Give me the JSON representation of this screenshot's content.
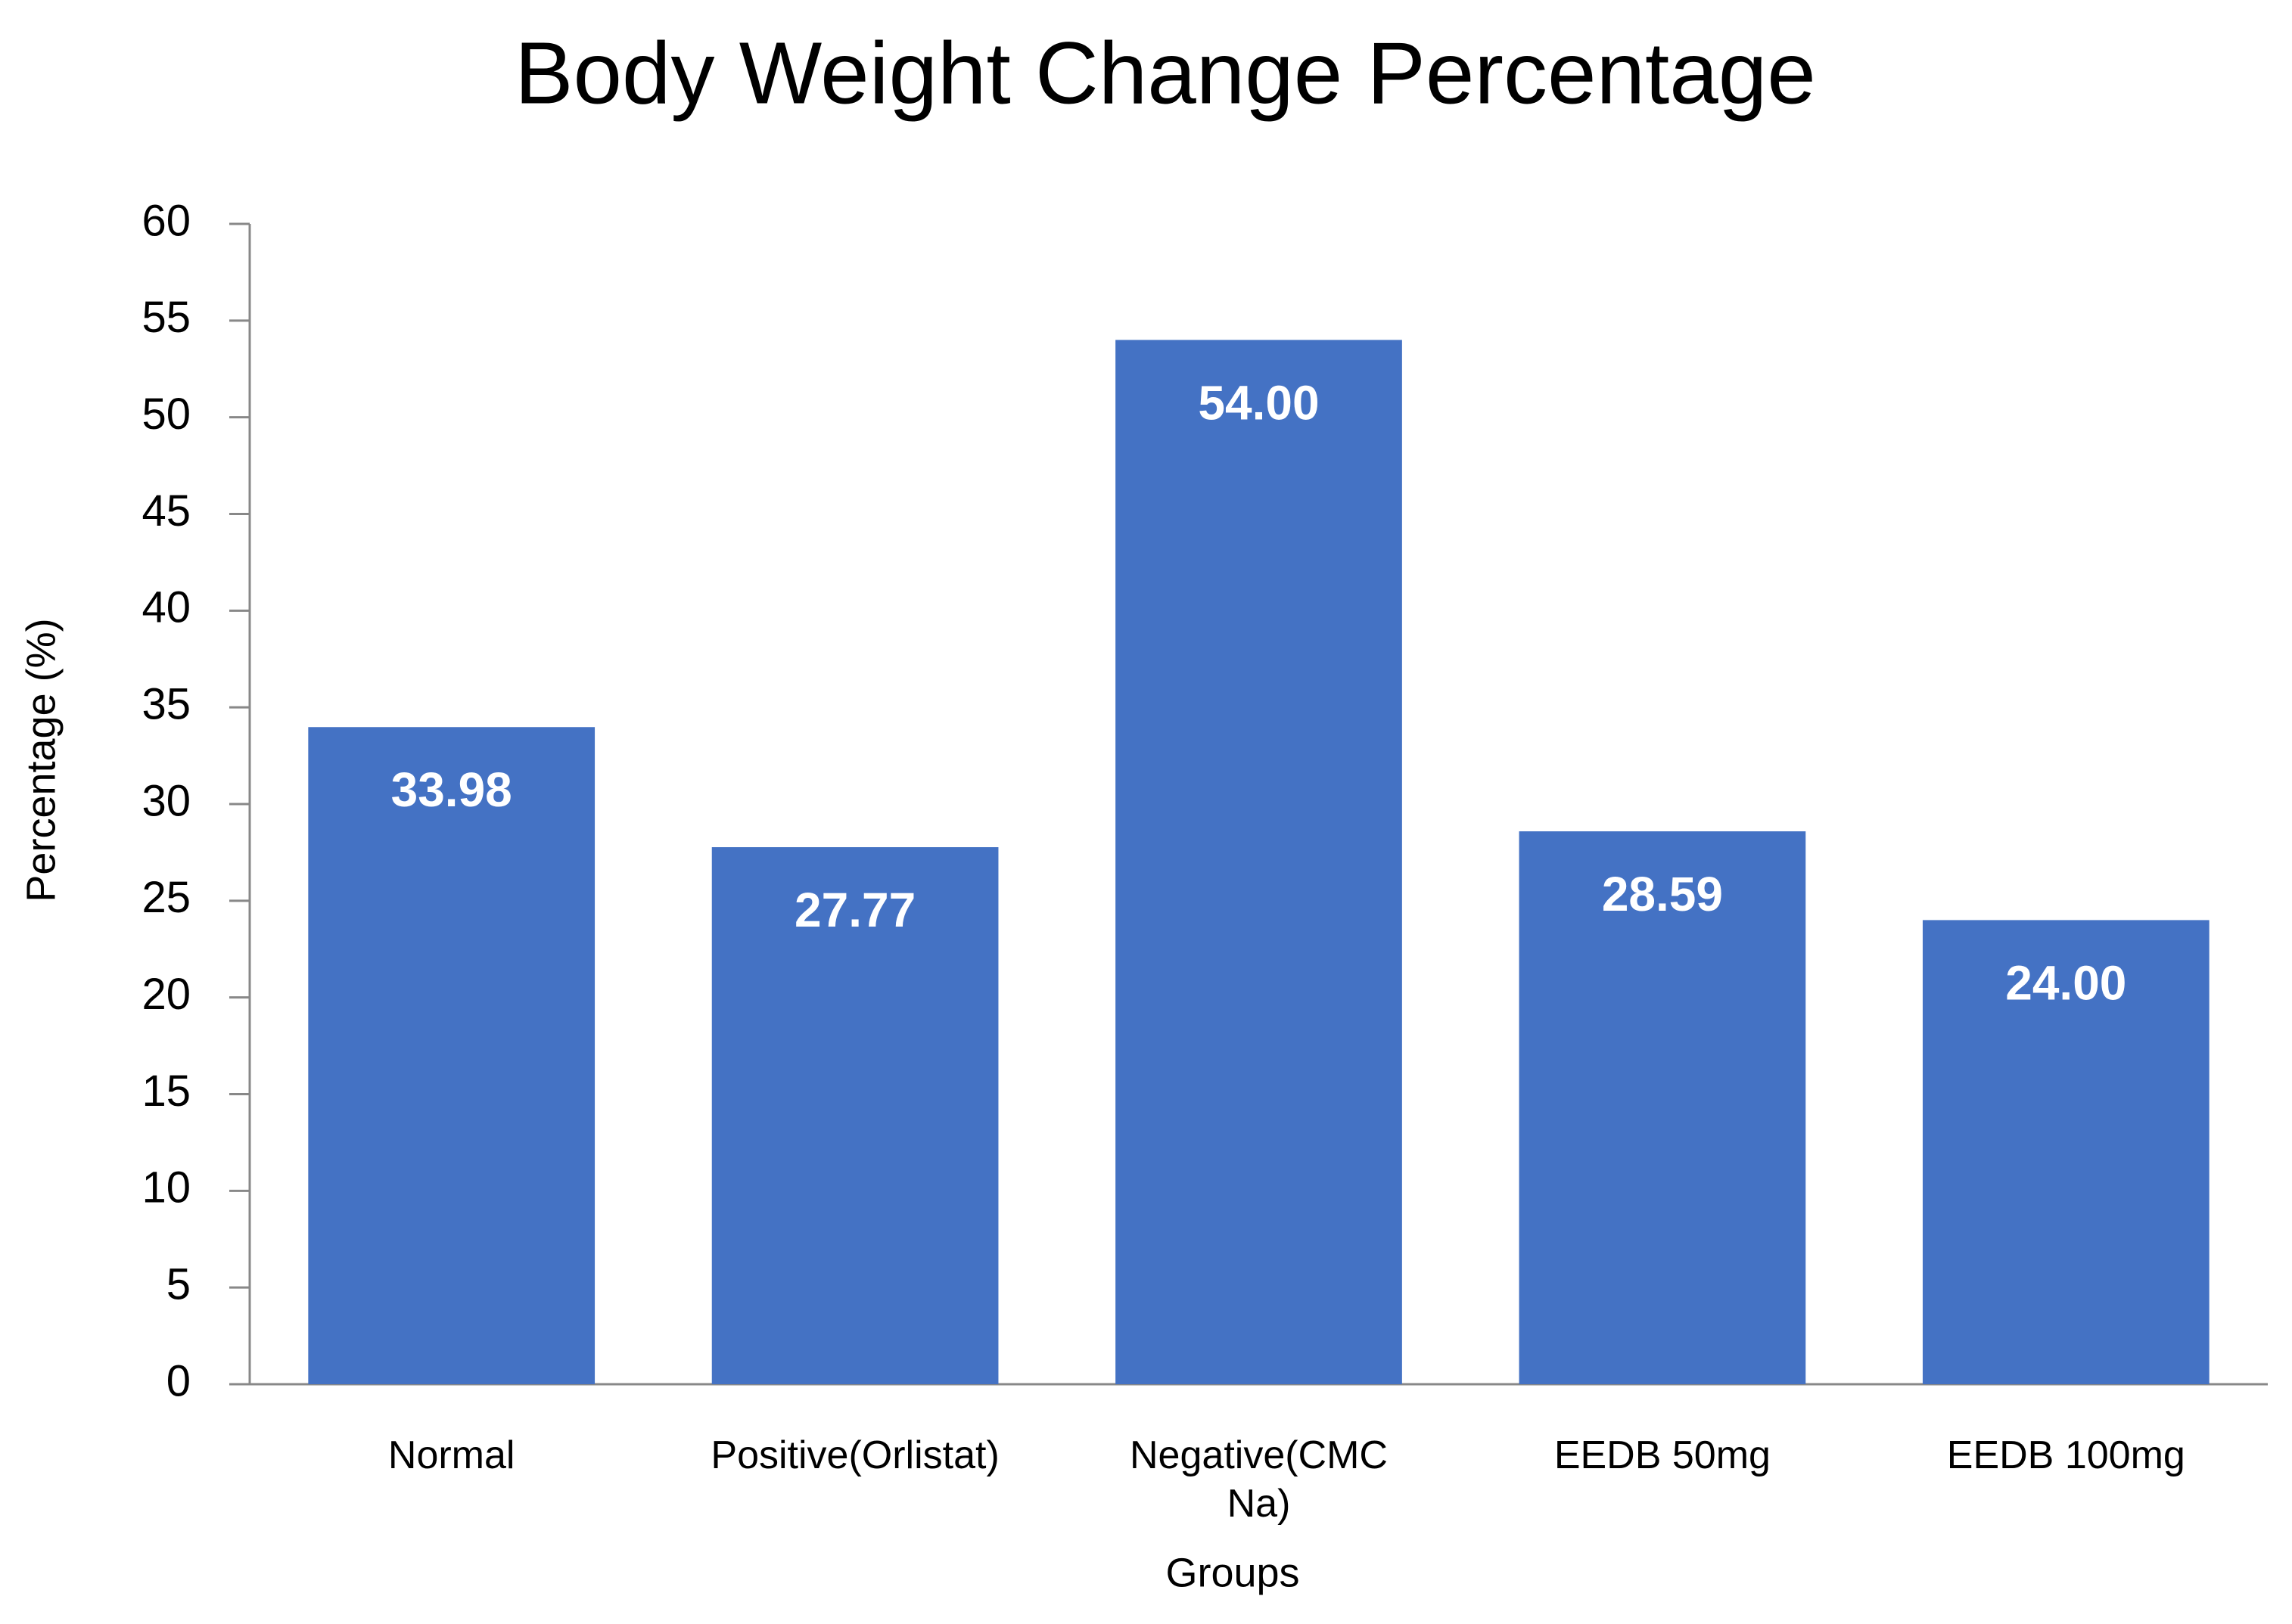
{
  "chart_data": {
    "type": "bar",
    "title": "Body Weight Change Percentage",
    "x_label": "Groups",
    "y_label": "Percentage (%)",
    "categories": [
      "Normal",
      "Positive(Orlistat)",
      "Negative(CMC Na)",
      "EEDB 50mg",
      "EEDB 100mg"
    ],
    "values": [
      33.98,
      27.77,
      54,
      28.59,
      24
    ],
    "value_labels": [
      "33.98",
      "27.77",
      "54.00",
      "28.59",
      "24.00"
    ],
    "color": "#4472c4",
    "ylim": [
      0,
      60
    ],
    "yticks": [
      0,
      5,
      10,
      15,
      20,
      25,
      30,
      35,
      40,
      45,
      50,
      55,
      60
    ],
    "grid": false
  }
}
